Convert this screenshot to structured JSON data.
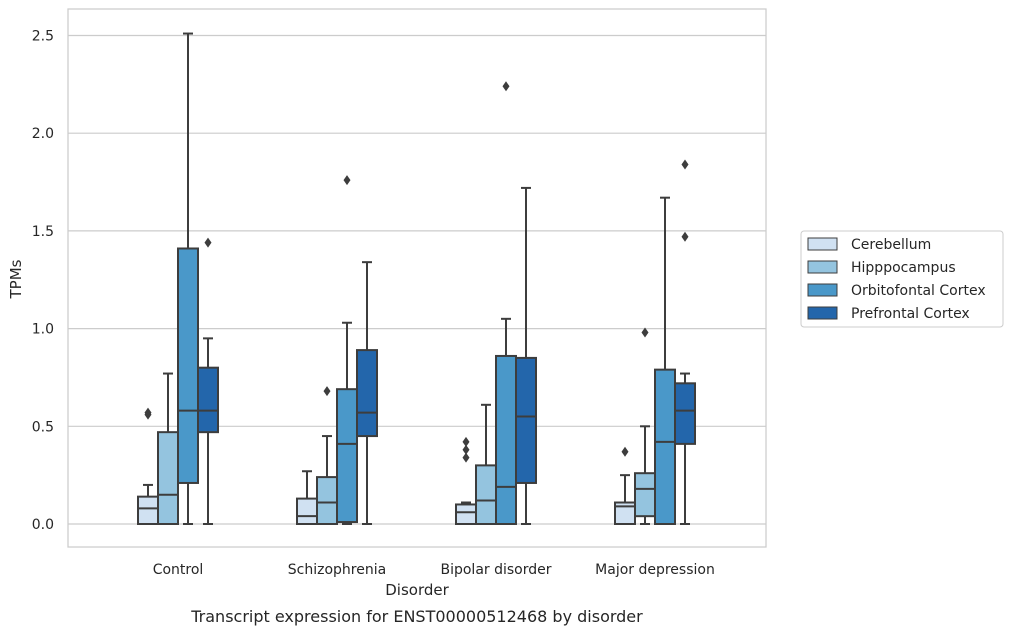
{
  "chart_data": {
    "type": "box",
    "caption": "Transcript expression for ENST00000512468 by disorder",
    "xlabel": "Disorder",
    "ylabel": "TPMs",
    "ylim": [
      -0.12,
      2.6
    ],
    "yticks": [
      "0.0",
      "0.5",
      "1.0",
      "1.5",
      "2.0",
      "2.5"
    ],
    "grid": true,
    "legend_position": "right",
    "categories": [
      "Control",
      "Schizophrenia",
      "Bipolar disorder",
      "Major depression"
    ],
    "series": [
      {
        "name": "Cerebellum",
        "color": "#d0e1f2",
        "boxes": [
          {
            "whisker_low": 0.0,
            "q1": 0.0,
            "median": 0.08,
            "q3": 0.14,
            "whisker_high": 0.2,
            "outliers": [
              0.56,
              0.57
            ]
          },
          {
            "whisker_low": 0.0,
            "q1": 0.0,
            "median": 0.04,
            "q3": 0.13,
            "whisker_high": 0.27,
            "outliers": []
          },
          {
            "whisker_low": 0.0,
            "q1": 0.0,
            "median": 0.06,
            "q3": 0.1,
            "whisker_high": 0.11,
            "outliers": [
              0.34,
              0.38,
              0.42
            ]
          },
          {
            "whisker_low": 0.0,
            "q1": 0.0,
            "median": 0.09,
            "q3": 0.11,
            "whisker_high": 0.25,
            "outliers": [
              0.37
            ]
          }
        ]
      },
      {
        "name": "Hipppocampus",
        "color": "#94c4df",
        "boxes": [
          {
            "whisker_low": 0.0,
            "q1": 0.0,
            "median": 0.15,
            "q3": 0.47,
            "whisker_high": 0.77,
            "outliers": []
          },
          {
            "whisker_low": 0.0,
            "q1": 0.0,
            "median": 0.11,
            "q3": 0.24,
            "whisker_high": 0.45,
            "outliers": [
              0.68
            ]
          },
          {
            "whisker_low": 0.0,
            "q1": 0.0,
            "median": 0.12,
            "q3": 0.3,
            "whisker_high": 0.61,
            "outliers": []
          },
          {
            "whisker_low": 0.0,
            "q1": 0.04,
            "median": 0.18,
            "q3": 0.26,
            "whisker_high": 0.5,
            "outliers": [
              0.98
            ]
          }
        ]
      },
      {
        "name": "Orbitofontal Cortex",
        "color": "#4a98c9",
        "boxes": [
          {
            "whisker_low": 0.0,
            "q1": 0.21,
            "median": 0.58,
            "q3": 1.41,
            "whisker_high": 2.51,
            "outliers": []
          },
          {
            "whisker_low": 0.0,
            "q1": 0.01,
            "median": 0.41,
            "q3": 0.69,
            "whisker_high": 1.03,
            "outliers": [
              1.76
            ]
          },
          {
            "whisker_low": 0.0,
            "q1": 0.0,
            "median": 0.19,
            "q3": 0.86,
            "whisker_high": 1.05,
            "outliers": [
              2.24
            ]
          },
          {
            "whisker_low": 0.0,
            "q1": 0.0,
            "median": 0.42,
            "q3": 0.79,
            "whisker_high": 1.67,
            "outliers": []
          }
        ]
      },
      {
        "name": "Prefrontal Cortex",
        "color": "#2366ab",
        "boxes": [
          {
            "whisker_low": 0.0,
            "q1": 0.47,
            "median": 0.58,
            "q3": 0.8,
            "whisker_high": 0.95,
            "outliers": [
              1.44
            ]
          },
          {
            "whisker_low": 0.0,
            "q1": 0.45,
            "median": 0.57,
            "q3": 0.89,
            "whisker_high": 1.34,
            "outliers": []
          },
          {
            "whisker_low": 0.0,
            "q1": 0.21,
            "median": 0.55,
            "q3": 0.85,
            "whisker_high": 1.72,
            "outliers": []
          },
          {
            "whisker_low": 0.0,
            "q1": 0.41,
            "median": 0.58,
            "q3": 0.72,
            "whisker_high": 0.77,
            "outliers": [
              1.47,
              1.84
            ]
          }
        ]
      }
    ]
  }
}
